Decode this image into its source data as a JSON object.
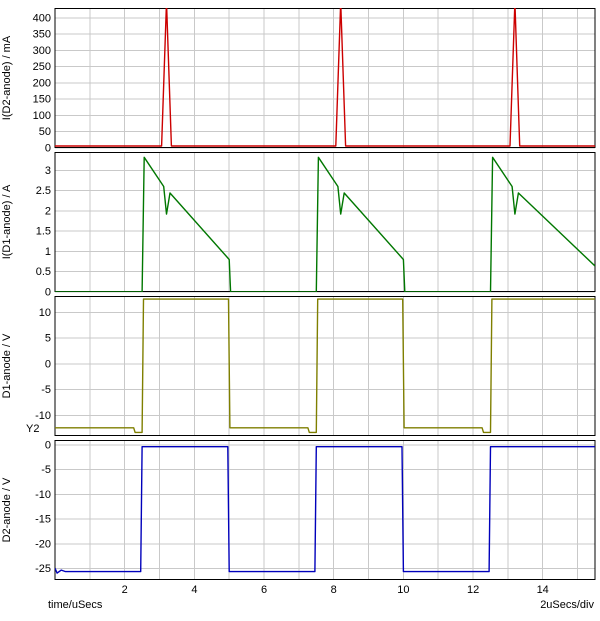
{
  "x_axis": {
    "xlim": [
      0,
      15.5
    ],
    "xticks": [
      2,
      4,
      6,
      8,
      10,
      12,
      14
    ],
    "grid_step": 1,
    "unit_label": "time/uSecs",
    "scale_label": "2uSecs/div"
  },
  "labels": {
    "y2": "Y2"
  },
  "chart_data": [
    {
      "type": "line",
      "name": "I(D2-anode) current",
      "ylabel": "I(D2-anode) / mA",
      "color": "#cc0000",
      "ylim": [
        0,
        430
      ],
      "yticks": [
        0,
        50,
        100,
        150,
        200,
        250,
        300,
        350,
        400
      ],
      "points": [
        [
          0,
          6
        ],
        [
          3.06,
          6
        ],
        [
          3.2,
          448
        ],
        [
          3.34,
          6
        ],
        [
          8.06,
          6
        ],
        [
          8.2,
          448
        ],
        [
          8.34,
          6
        ],
        [
          13.06,
          6
        ],
        [
          13.2,
          448
        ],
        [
          13.34,
          6
        ],
        [
          15.5,
          6
        ]
      ]
    },
    {
      "type": "line",
      "name": "I(D1-anode) current",
      "ylabel": "I(D1-anode) / A",
      "color": "#007700",
      "ylim": [
        0,
        3.45
      ],
      "yticks": [
        0,
        0.5,
        1,
        1.5,
        2,
        2.5,
        3
      ],
      "points": [
        [
          0,
          0
        ],
        [
          2.5,
          0
        ],
        [
          2.56,
          3.32
        ],
        [
          3.12,
          2.6
        ],
        [
          3.2,
          1.92
        ],
        [
          3.3,
          2.44
        ],
        [
          5.0,
          0.8
        ],
        [
          5.04,
          0
        ],
        [
          7.5,
          0
        ],
        [
          7.56,
          3.32
        ],
        [
          8.12,
          2.6
        ],
        [
          8.2,
          1.92
        ],
        [
          8.3,
          2.44
        ],
        [
          10.0,
          0.8
        ],
        [
          10.04,
          0
        ],
        [
          12.5,
          0
        ],
        [
          12.56,
          3.32
        ],
        [
          13.12,
          2.6
        ],
        [
          13.2,
          1.92
        ],
        [
          13.3,
          2.44
        ],
        [
          15.5,
          0.64
        ]
      ]
    },
    {
      "type": "line",
      "name": "D1-anode voltage",
      "ylabel": "D1-anode / V",
      "color": "#7f7f00",
      "ylim": [
        -14,
        13.2
      ],
      "yticks": [
        -10,
        -5,
        0,
        5,
        10
      ],
      "points": [
        [
          0,
          -12.4
        ],
        [
          2.26,
          -12.4
        ],
        [
          2.3,
          -13.3
        ],
        [
          2.5,
          -13.3
        ],
        [
          2.54,
          12.6
        ],
        [
          4.98,
          12.6
        ],
        [
          5.02,
          -12.4
        ],
        [
          7.26,
          -12.4
        ],
        [
          7.3,
          -13.3
        ],
        [
          7.5,
          -13.3
        ],
        [
          7.54,
          12.6
        ],
        [
          9.98,
          12.6
        ],
        [
          10.02,
          -12.4
        ],
        [
          12.26,
          -12.4
        ],
        [
          12.3,
          -13.3
        ],
        [
          12.5,
          -13.3
        ],
        [
          12.54,
          12.6
        ],
        [
          15.5,
          12.6
        ]
      ]
    },
    {
      "type": "line",
      "name": "D2-anode voltage",
      "ylabel": "D2-anode / V",
      "color": "#0000bb",
      "ylim": [
        -27.3,
        1.0
      ],
      "yticks": [
        0,
        -5,
        -10,
        -15,
        -20,
        -25
      ],
      "points": [
        [
          0,
          -24.9
        ],
        [
          0.06,
          -25.9
        ],
        [
          0.18,
          -25.3
        ],
        [
          0.3,
          -25.6
        ],
        [
          2.46,
          -25.6
        ],
        [
          2.5,
          -0.35
        ],
        [
          4.96,
          -0.35
        ],
        [
          5.0,
          -25.6
        ],
        [
          7.46,
          -25.6
        ],
        [
          7.5,
          -0.35
        ],
        [
          9.96,
          -0.35
        ],
        [
          10.0,
          -25.6
        ],
        [
          12.46,
          -25.6
        ],
        [
          12.5,
          -0.35
        ],
        [
          15.5,
          -0.35
        ]
      ]
    }
  ]
}
